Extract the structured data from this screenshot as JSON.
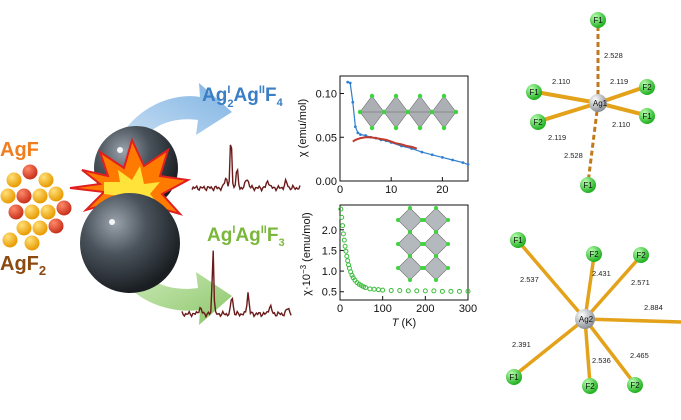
{
  "left": {
    "agf_label": "AgF",
    "agf2_label": "AgF",
    "agf2_sub": "2",
    "colors": {
      "agf": "#f07d1e",
      "agf2": "#8a4a10",
      "particle_yellow": "#f7b500",
      "particle_red": "#e4452a"
    }
  },
  "products": {
    "top": {
      "base": "Ag",
      "sup1": "I",
      "sub1": "2",
      "mid": "Ag",
      "sup2": "II",
      "tail": "F",
      "sub2": "4",
      "color": "#3a7ec6"
    },
    "bottom": {
      "base": "Ag",
      "sup1": "I",
      "mid": "Ag",
      "sup2": "II",
      "tail": "F",
      "sub2": "3",
      "color": "#7ab83c"
    }
  },
  "chart_data": [
    {
      "type": "line",
      "ylabel_main": "χ (emu/mol)",
      "x_ticks": [
        0,
        10,
        20
      ],
      "y_ticks": [
        0.0,
        0.05,
        0.1
      ],
      "xlim": [
        0,
        25
      ],
      "ylim": [
        0.0,
        0.12
      ],
      "series": [
        {
          "color": "#2f7fd0",
          "x": [
            1.5,
            2.0,
            2.5,
            3.0,
            3.5,
            4,
            5,
            6,
            7,
            8,
            9,
            10,
            12,
            14,
            16,
            18,
            20,
            22,
            24,
            25
          ],
          "y": [
            0.113,
            0.112,
            0.09,
            0.062,
            0.055,
            0.053,
            0.052,
            0.05,
            0.049,
            0.047,
            0.046,
            0.044,
            0.04,
            0.037,
            0.033,
            0.03,
            0.027,
            0.024,
            0.021,
            0.019
          ]
        },
        {
          "color": "#c0392b",
          "x": [
            2.5,
            3,
            4,
            5,
            6,
            7,
            8,
            9,
            10,
            11,
            12,
            13,
            14,
            15
          ],
          "y": [
            0.045,
            0.047,
            0.049,
            0.05,
            0.05,
            0.049,
            0.048,
            0.047,
            0.045,
            0.043,
            0.042,
            0.04,
            0.039,
            0.037
          ]
        }
      ]
    },
    {
      "type": "scatter",
      "ylabel_main": "χ·10",
      "ylabel_sup": "−3",
      "ylabel_units": " (emu/mol)",
      "xlabel_main": "T",
      "xlabel_units": " (K)",
      "x_ticks": [
        0,
        100,
        200,
        300
      ],
      "y_ticks": [
        0.5,
        1.0,
        1.5,
        2.0
      ],
      "xlim": [
        0,
        300
      ],
      "ylim": [
        0.3,
        2.6
      ],
      "series": [
        {
          "color": "#3bbd3b",
          "x": [
            2,
            4,
            6,
            8,
            10,
            12,
            14,
            16,
            18,
            20,
            22,
            25,
            28,
            31,
            35,
            40,
            45,
            50,
            55,
            60,
            70,
            80,
            90,
            100,
            120,
            140,
            160,
            180,
            200,
            220,
            240,
            260,
            280,
            300
          ],
          "y": [
            2.5,
            2.3,
            2.1,
            1.9,
            1.75,
            1.6,
            1.48,
            1.36,
            1.25,
            1.15,
            1.07,
            0.98,
            0.9,
            0.84,
            0.78,
            0.72,
            0.68,
            0.65,
            0.62,
            0.6,
            0.57,
            0.56,
            0.55,
            0.54,
            0.53,
            0.53,
            0.52,
            0.52,
            0.52,
            0.52,
            0.51,
            0.51,
            0.51,
            0.51
          ]
        }
      ]
    }
  ],
  "ag1": {
    "center": "Ag1",
    "atoms": {
      "top": "F1",
      "bottom": "F1",
      "ul": "F1",
      "ll": "F2",
      "ur": "F2",
      "lr": "F1"
    },
    "bonds": {
      "top": "2.528",
      "bottom": "2.528",
      "ul": "2.110",
      "ll": "2.119",
      "ur": "2.119",
      "lr": "2.110"
    }
  },
  "ag2": {
    "center": "Ag2",
    "atoms": {
      "f1_tl": "F1",
      "f2_top": "F2",
      "f2_tr": "F2",
      "f1_bl": "F1",
      "f2_bot": "F2",
      "f2_br": "F2"
    },
    "bonds": {
      "b1": "2.537",
      "b2": "2.431",
      "b3": "2.571",
      "b4": "2.884",
      "b5": "2.391",
      "b6": "2.536",
      "b7": "2.465"
    }
  },
  "colors": {
    "fluorine": "#3fd43f",
    "bond_gold": "#e3a21a",
    "bond_dashed": "#c07a1a",
    "silver": "#bfc3c8"
  }
}
